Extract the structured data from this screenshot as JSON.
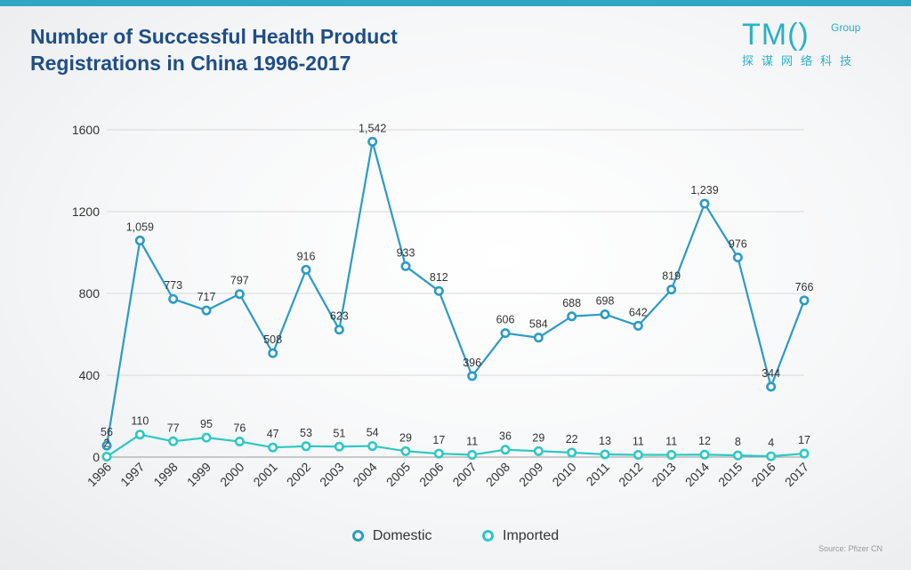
{
  "header": {
    "title": "Number of Successful Health Product Registrations in China 1996-2017"
  },
  "logo": {
    "main_text": "TM()",
    "group_text": "Group",
    "sub_text": "探谋网络科技"
  },
  "footer": {
    "source": "Source: Pfizer CN"
  },
  "colors": {
    "domestic": "#2b9bc4",
    "imported": "#2ec8c3",
    "title": "#1f4e85",
    "accent_bar": "#2fa6c6"
  },
  "chart_data": {
    "type": "line",
    "title": "Number of Successful Health Product Registrations in China 1996-2017",
    "xlabel": "",
    "ylabel": "",
    "x": [
      "1996",
      "1997",
      "1998",
      "1999",
      "2000",
      "2001",
      "2002",
      "2003",
      "2004",
      "2005",
      "2006",
      "2007",
      "2008",
      "2009",
      "2010",
      "2011",
      "2012",
      "2013",
      "2014",
      "2015",
      "2016",
      "2017"
    ],
    "ylim": [
      0,
      1600
    ],
    "yticks": [
      0,
      400,
      800,
      1200,
      1600
    ],
    "grid": true,
    "legend_position": "bottom",
    "series": [
      {
        "name": "Domestic",
        "values": [
          56,
          1059,
          773,
          717,
          797,
          508,
          916,
          623,
          1542,
          933,
          812,
          396,
          606,
          584,
          688,
          698,
          642,
          819,
          1239,
          976,
          344,
          766
        ],
        "labels": [
          "56",
          "1,059",
          "773",
          "717",
          "797",
          "508",
          "916",
          "623",
          "1,542",
          "933",
          "812",
          "396",
          "606",
          "584",
          "688",
          "698",
          "642",
          "819",
          "1,239",
          "976",
          "344",
          "766"
        ]
      },
      {
        "name": "Imported",
        "values": [
          2,
          110,
          77,
          95,
          76,
          47,
          53,
          51,
          54,
          29,
          17,
          11,
          36,
          29,
          22,
          13,
          11,
          11,
          12,
          8,
          4,
          17
        ],
        "labels": [
          "2",
          "110",
          "77",
          "95",
          "76",
          "47",
          "53",
          "51",
          "54",
          "29",
          "17",
          "11",
          "36",
          "29",
          "22",
          "13",
          "11",
          "11",
          "12",
          "8",
          "4",
          "17"
        ]
      }
    ]
  }
}
